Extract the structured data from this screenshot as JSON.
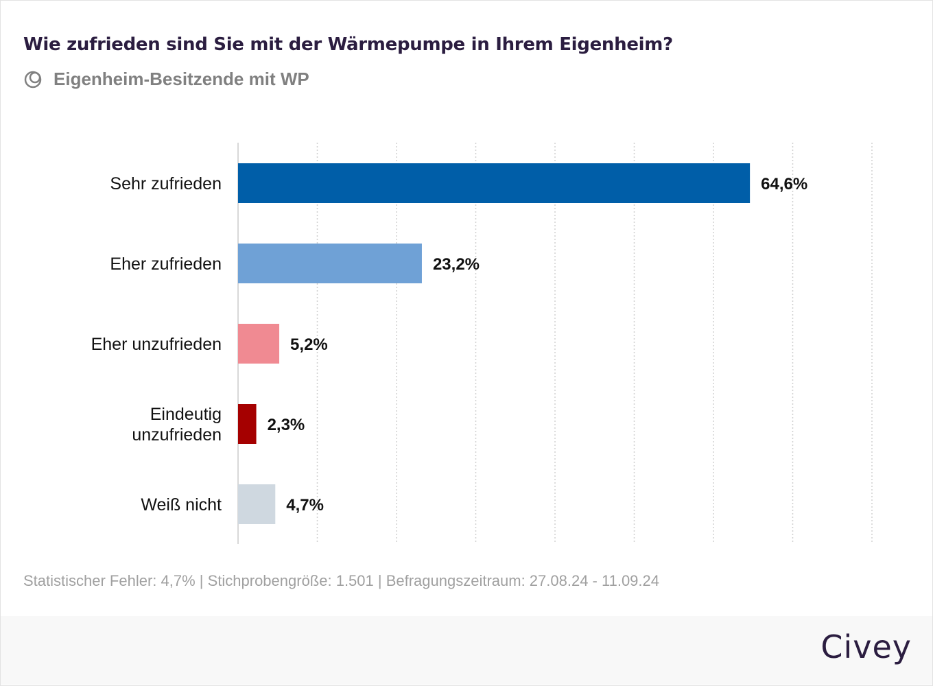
{
  "title": "Wie zufrieden sind Sie mit der Wärmepumpe in Ihrem Eigenheim?",
  "subtitle": {
    "icon": "target-group-icon",
    "text": "Eigenheim-Besitzende mit WP"
  },
  "chart_data": {
    "type": "bar",
    "orientation": "horizontal",
    "categories": [
      "Sehr zufrieden",
      "Eher zufrieden",
      "Eher unzufrieden",
      "Eindeutig unzufrieden",
      "Weiß nicht"
    ],
    "category_lines": [
      [
        "Sehr zufrieden"
      ],
      [
        "Eher zufrieden"
      ],
      [
        "Eher unzufrieden"
      ],
      [
        "Eindeutig",
        "unzufrieden"
      ],
      [
        "Weiß nicht"
      ]
    ],
    "values": [
      64.6,
      23.2,
      5.2,
      2.3,
      4.7
    ],
    "data_labels": [
      "64,6%",
      "23,2%",
      "5,2%",
      "2,3%",
      "4,7%"
    ],
    "colors": [
      "#005ea8",
      "#6fa1d6",
      "#f08a92",
      "#a50000",
      "#cfd8e0"
    ],
    "xlim": [
      0,
      80
    ],
    "grid": true,
    "unit": "%"
  },
  "note": "Statistischer Fehler: 4,7% | Stichprobengröße: 1.501 | Befragungszeitraum: 27.08.24 - 11.09.24",
  "logo": "Civey"
}
